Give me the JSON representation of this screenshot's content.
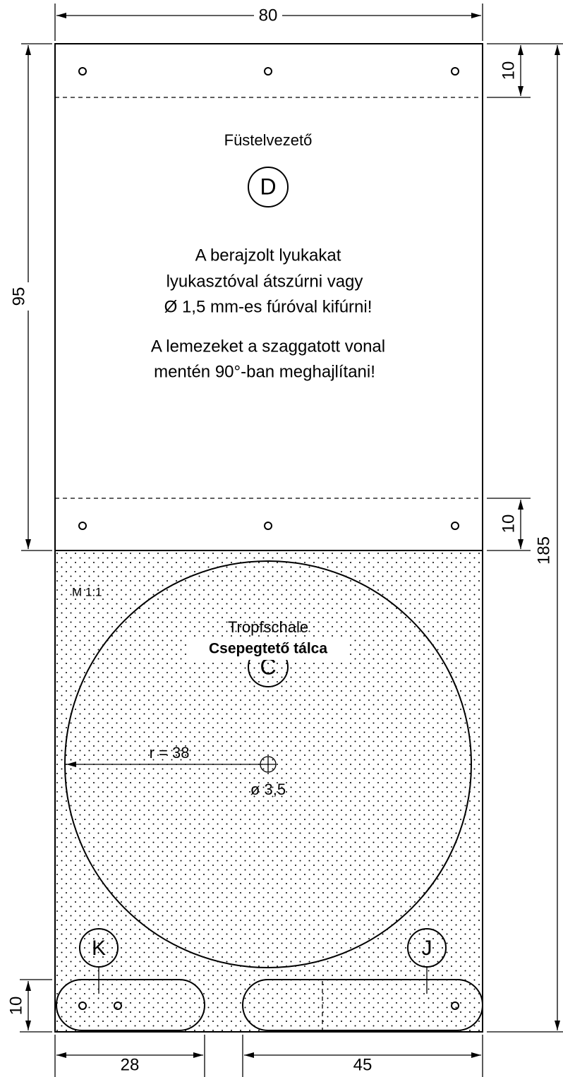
{
  "dimensions": {
    "width": "80",
    "upper_height": "95",
    "total_height": "185",
    "top_flap": "10",
    "bottom_flap": "10",
    "slot_height": "10",
    "left_slot": "28",
    "right_slot": "45",
    "radius": "r = 38",
    "hole": "ø 3,5"
  },
  "upper_part": {
    "name": "Füstelvezető",
    "letter": "D"
  },
  "instructions": [
    "A berajzolt lyukakat",
    "lyukasztóval átszúrni vagy",
    "Ø 1,5 mm-es fúróval kifúrni!",
    "A lemezeket a szaggatott vonal",
    "mentén 90°-ban meghajlítani!"
  ],
  "lower_part": {
    "scale": "M 1:1",
    "name_de": "Tropfschale",
    "name": "Csepegtető tálca",
    "letter": "C"
  },
  "slots": {
    "left": "K",
    "right": "J"
  }
}
